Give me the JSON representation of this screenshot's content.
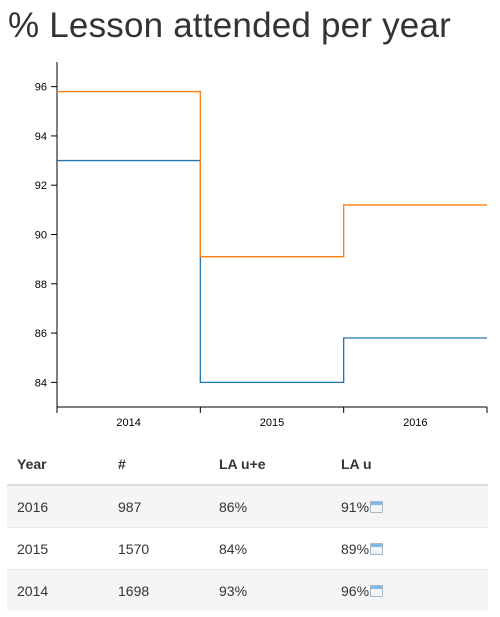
{
  "title": "% Lesson attended per year",
  "chart_data": {
    "type": "line",
    "step": true,
    "categories": [
      "2014",
      "2015",
      "2016"
    ],
    "ylim": [
      83,
      97
    ],
    "yticks": [
      84,
      86,
      88,
      90,
      92,
      94,
      96
    ],
    "grid": false,
    "series": [
      {
        "values": [
          93,
          84,
          85.8
        ],
        "color": "#1f77b4"
      },
      {
        "values": [
          95.8,
          89.1,
          91.2
        ],
        "color": "#ff7f0e"
      }
    ]
  },
  "table": {
    "headers": [
      "Year",
      "#",
      "LA u+e",
      "LA u"
    ],
    "rows": [
      [
        "2016",
        "987",
        "86%",
        "91%"
      ],
      [
        "2015",
        "1570",
        "84%",
        "89%"
      ],
      [
        "2014",
        "1698",
        "93%",
        "96%"
      ]
    ],
    "icon": "calendar-icon"
  }
}
